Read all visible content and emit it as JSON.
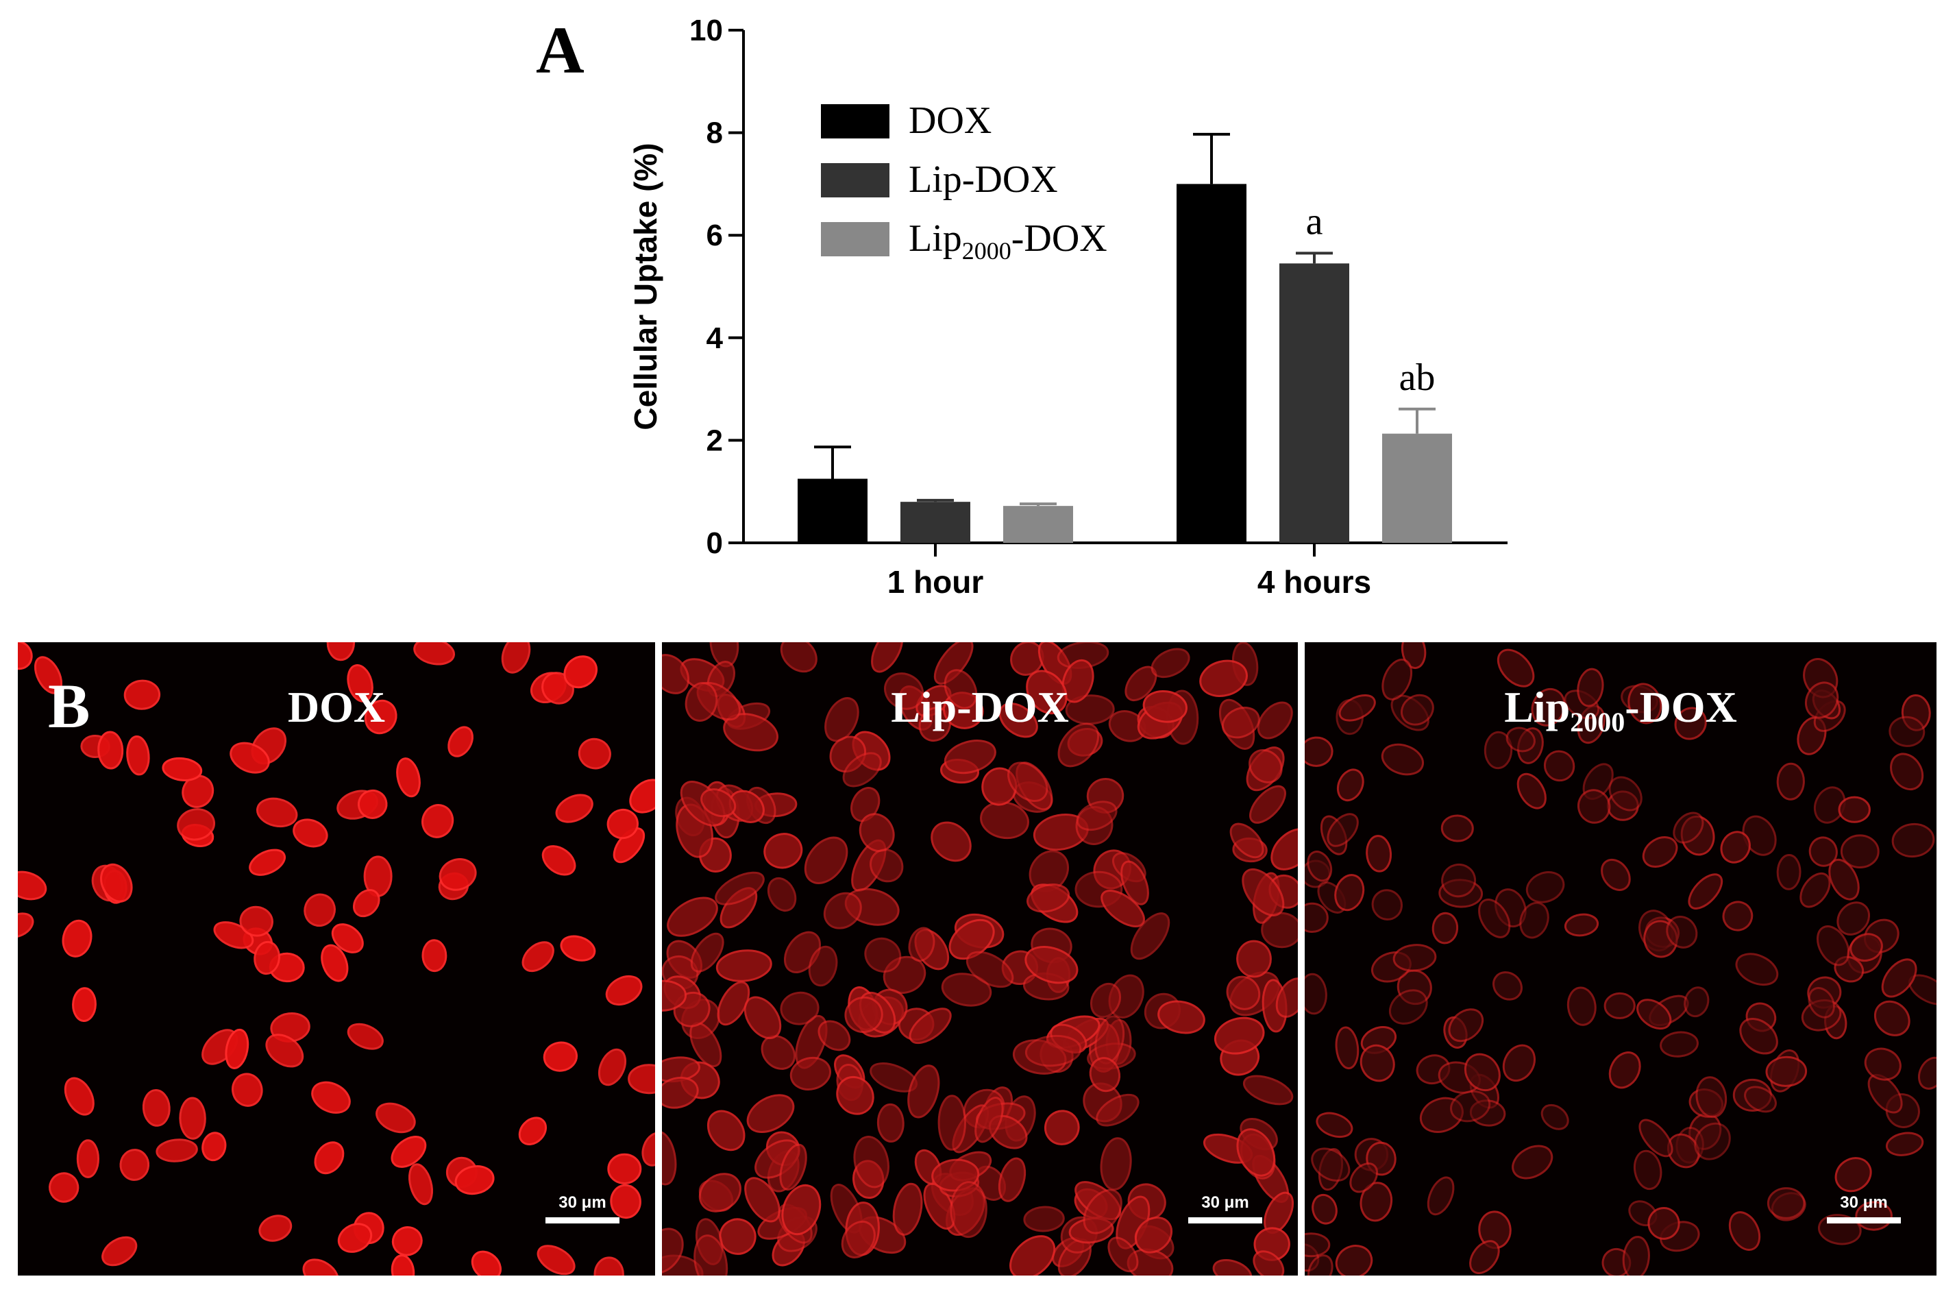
{
  "panel_a": {
    "label": "A",
    "chart_data": {
      "type": "bar",
      "categories": [
        "1 hour",
        "4 hours"
      ],
      "ylabel": "Cellular Uptake (%)",
      "xlabel": "",
      "ylim": [
        0,
        10
      ],
      "yticks": [
        0,
        2,
        4,
        6,
        8,
        10
      ],
      "legend_position": "top-left",
      "series": [
        {
          "name": "DOX",
          "name_sub": "",
          "name_suffix": "",
          "color": "#000000",
          "values": [
            1.25,
            7.0
          ],
          "errors": [
            0.62,
            0.97
          ],
          "annotations": [
            "",
            ""
          ]
        },
        {
          "name": "Lip-DOX",
          "name_sub": "",
          "name_suffix": "",
          "color": "#333333",
          "values": [
            0.8,
            5.45
          ],
          "errors": [
            0.03,
            0.2
          ],
          "annotations": [
            "",
            "a"
          ]
        },
        {
          "name": "Lip",
          "name_sub": "2000",
          "name_suffix": "-DOX",
          "color": "#888888",
          "values": [
            0.72,
            2.13
          ],
          "errors": [
            0.04,
            0.48
          ],
          "annotations": [
            "",
            "ab"
          ]
        }
      ]
    }
  },
  "panel_b": {
    "label": "B",
    "scale_label": "30 μm",
    "images": [
      {
        "title": "DOX",
        "title_sub": "",
        "title_suffix": ""
      },
      {
        "title": "Lip-DOX",
        "title_sub": "",
        "title_suffix": ""
      },
      {
        "title": "Lip",
        "title_sub": "2000",
        "title_suffix": "-DOX"
      }
    ]
  }
}
